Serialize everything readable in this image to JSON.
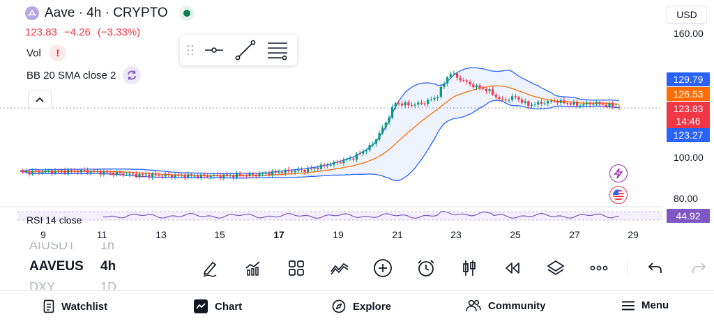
{
  "header": {
    "title": "Aave · 4h · CRYPTO",
    "logo_icon": "aave-logo-icon",
    "market_status": "market-open-dot"
  },
  "quote": {
    "last": "123.83",
    "change": "−4.26",
    "change_pct": "(−3.33%)"
  },
  "indicators": {
    "vol_label": "Vol",
    "vol_alert": "!",
    "bb_label": "BB 20 SMA close 2",
    "rsi_label": "RSI 14 close"
  },
  "currency": "USD",
  "price_axis": {
    "labels": [
      "160.00",
      "100.00",
      "80.00"
    ],
    "tags": {
      "upper": "129.79",
      "basis": "126.53",
      "last": "123.83",
      "countdown": "14:46",
      "lower": "123.27",
      "rsi": "44.92"
    }
  },
  "date_axis": [
    "9",
    "11",
    "13",
    "15",
    "17",
    "19",
    "21",
    "23",
    "25",
    "27",
    "29"
  ],
  "symbols": [
    {
      "symbol": "AIUSDT",
      "interval": "1h"
    },
    {
      "symbol": "AAVEUS",
      "interval": "4h"
    },
    {
      "symbol": "DXY",
      "interval": "1D"
    }
  ],
  "nav": [
    {
      "label": "Watchlist",
      "icon": "watchlist-icon"
    },
    {
      "label": "Chart",
      "icon": "chart-icon"
    },
    {
      "label": "Explore",
      "icon": "compass-icon"
    },
    {
      "label": "Community",
      "icon": "community-icon"
    },
    {
      "label": "Menu",
      "icon": "menu-icon"
    }
  ],
  "colors": {
    "up": "#089981",
    "down": "#f23645",
    "bb_band": "#2962ff",
    "bb_basis": "#ff6d00",
    "rsi": "#7e57c2",
    "brand": "#131722"
  }
}
